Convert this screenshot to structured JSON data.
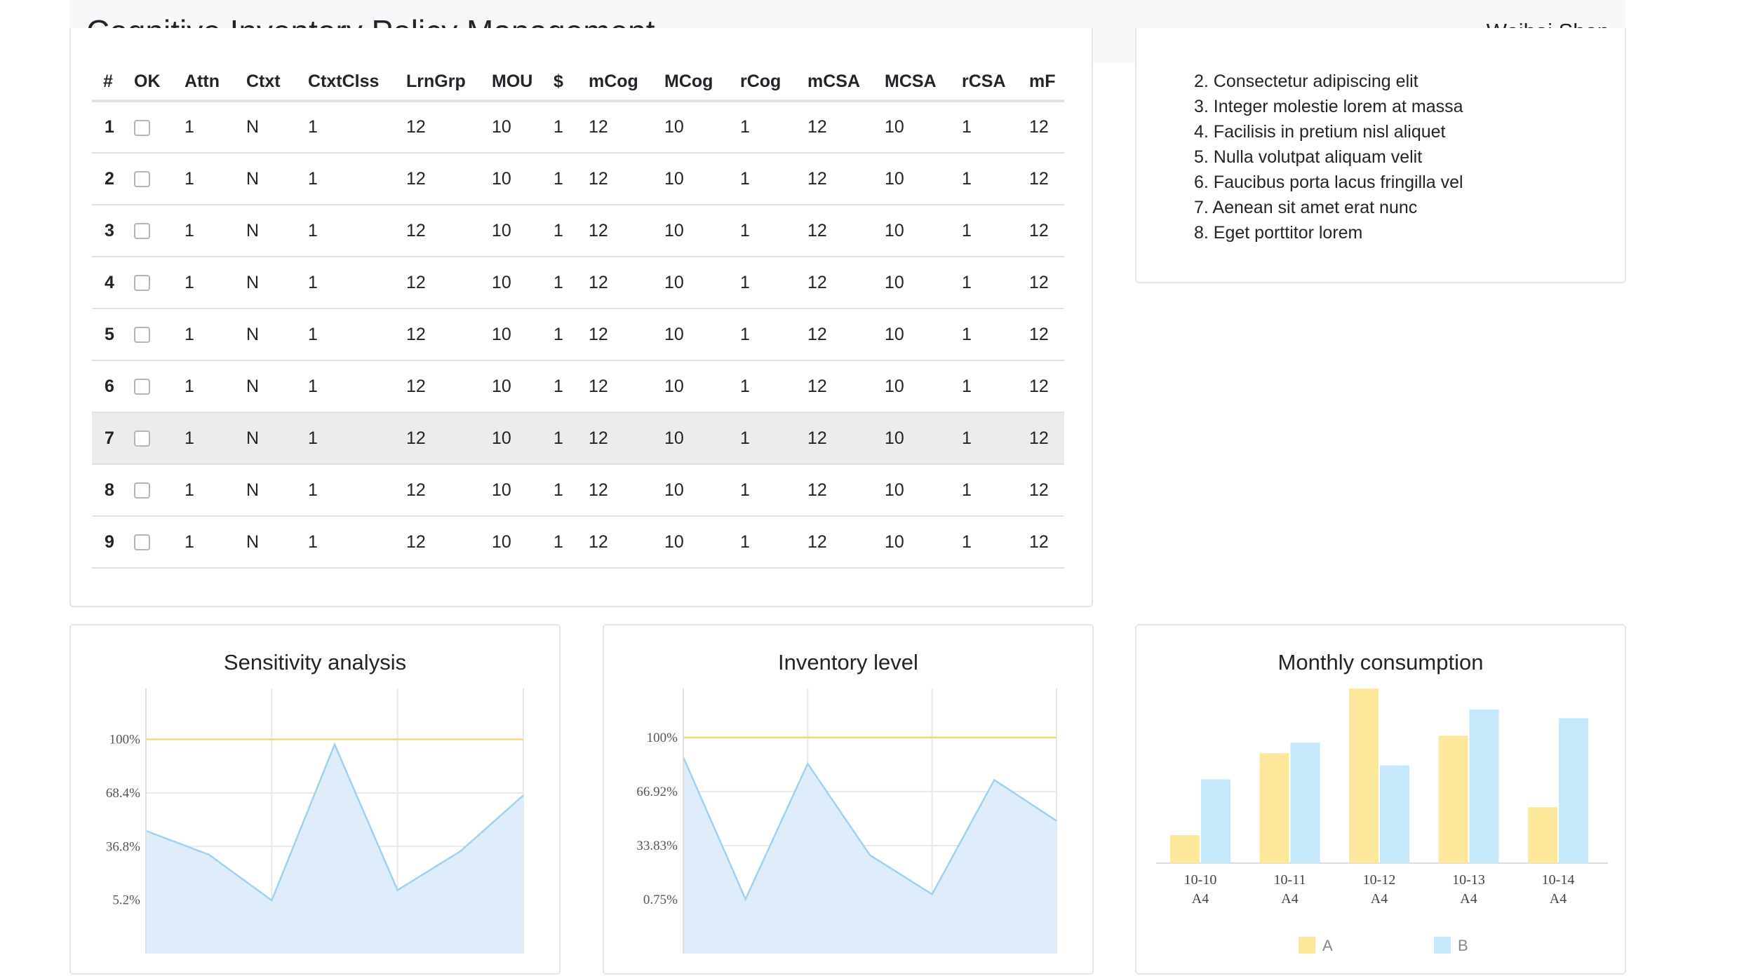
{
  "header": {
    "title": "Cognitive Inventory Policy Management",
    "user": "Weihai Shen"
  },
  "table": {
    "columns": [
      "#",
      "OK",
      "Attn",
      "Ctxt",
      "CtxtClss",
      "LrnGrp",
      "MOU",
      "$",
      "mCog",
      "MCog",
      "rCog",
      "mCSA",
      "MCSA",
      "rCSA",
      "mF"
    ],
    "rows": [
      [
        "1",
        "",
        "1",
        "N",
        "1",
        "12",
        "10",
        "1",
        "12",
        "10",
        "1",
        "12",
        "10",
        "1",
        "12"
      ],
      [
        "2",
        "",
        "1",
        "N",
        "1",
        "12",
        "10",
        "1",
        "12",
        "10",
        "1",
        "12",
        "10",
        "1",
        "12"
      ],
      [
        "3",
        "",
        "1",
        "N",
        "1",
        "12",
        "10",
        "1",
        "12",
        "10",
        "1",
        "12",
        "10",
        "1",
        "12"
      ],
      [
        "4",
        "",
        "1",
        "N",
        "1",
        "12",
        "10",
        "1",
        "12",
        "10",
        "1",
        "12",
        "10",
        "1",
        "12"
      ],
      [
        "5",
        "",
        "1",
        "N",
        "1",
        "12",
        "10",
        "1",
        "12",
        "10",
        "1",
        "12",
        "10",
        "1",
        "12"
      ],
      [
        "6",
        "",
        "1",
        "N",
        "1",
        "12",
        "10",
        "1",
        "12",
        "10",
        "1",
        "12",
        "10",
        "1",
        "12"
      ],
      [
        "7",
        "",
        "1",
        "N",
        "1",
        "12",
        "10",
        "1",
        "12",
        "10",
        "1",
        "12",
        "10",
        "1",
        "12"
      ],
      [
        "8",
        "",
        "1",
        "N",
        "1",
        "12",
        "10",
        "1",
        "12",
        "10",
        "1",
        "12",
        "10",
        "1",
        "12"
      ],
      [
        "9",
        "",
        "1",
        "N",
        "1",
        "12",
        "10",
        "1",
        "12",
        "10",
        "1",
        "12",
        "10",
        "1",
        "12"
      ]
    ],
    "highlighted_row": 6
  },
  "list": {
    "items": [
      "2. Consectetur adipiscing elit",
      "3. Integer molestie lorem at massa",
      "4. Facilisis in pretium nisl aliquet",
      "5. Nulla volutpat aliquam velit",
      "6. Faucibus porta lacus fringilla vel",
      "7. Aenean sit amet erat nunc",
      "8. Eget porttitor lorem"
    ]
  },
  "colors": {
    "line": "#9fd2f0",
    "area": "#dfedfb",
    "threshold": "#f5d77a",
    "barA": "#fde79a",
    "barB": "#c5e8fb"
  },
  "chart_data": [
    {
      "type": "area",
      "title": "Sensitivity analysis",
      "y_ticks": [
        "100%",
        "68.4%",
        "36.8%",
        "5.2%"
      ],
      "y_tick_values": [
        100,
        68.4,
        36.8,
        5.2
      ],
      "values": [
        46,
        32,
        5,
        97,
        11,
        34,
        67
      ],
      "threshold": 100,
      "ylim": [
        -26.4,
        130
      ]
    },
    {
      "type": "area",
      "title": "Inventory level",
      "y_ticks": [
        "100%",
        "66.92%",
        "33.83%",
        "0.75%"
      ],
      "y_tick_values": [
        100,
        66.92,
        33.83,
        0.75
      ],
      "values": [
        88,
        1,
        84,
        28,
        4,
        74,
        49
      ],
      "threshold": 100,
      "ylim": [
        -32.3,
        130
      ]
    },
    {
      "type": "bar",
      "title": "Monthly consumption",
      "categories": [
        "10-10",
        "10-11",
        "10-12",
        "10-13",
        "10-14"
      ],
      "subcategories": [
        "A4",
        "A4",
        "A4",
        "A4",
        "A4"
      ],
      "series": [
        {
          "name": "A",
          "values": [
            16,
            63,
            100,
            73,
            32
          ]
        },
        {
          "name": "B",
          "values": [
            48,
            69,
            56,
            88,
            83
          ]
        }
      ],
      "ylim": [
        0,
        100
      ]
    }
  ]
}
